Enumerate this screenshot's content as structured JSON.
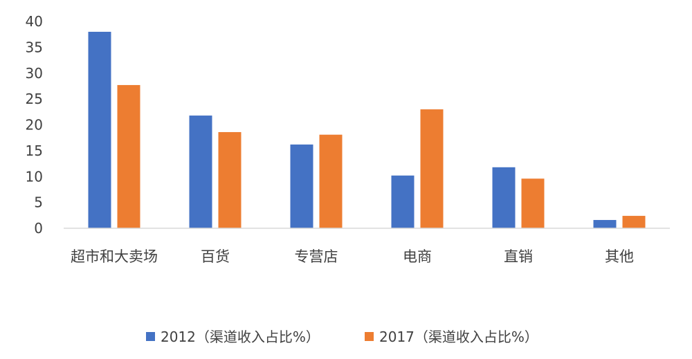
{
  "chart_data": {
    "type": "bar",
    "categories": [
      "超市和大卖场",
      "百货",
      "专营店",
      "电商",
      "直销",
      "其他"
    ],
    "series": [
      {
        "name": "2012（渠道收入占比%）",
        "values": [
          38,
          21.8,
          16.2,
          10.2,
          11.8,
          1.6
        ],
        "color": "#4472C4"
      },
      {
        "name": "2017（渠道收入占比%）",
        "values": [
          27.7,
          18.6,
          18.1,
          23,
          9.6,
          2.4
        ],
        "color": "#ED7D31"
      }
    ],
    "ylim": [
      0,
      40
    ],
    "yticks": [
      0,
      5,
      10,
      15,
      20,
      25,
      30,
      35,
      40
    ],
    "grid": false,
    "legend": "bottom"
  }
}
